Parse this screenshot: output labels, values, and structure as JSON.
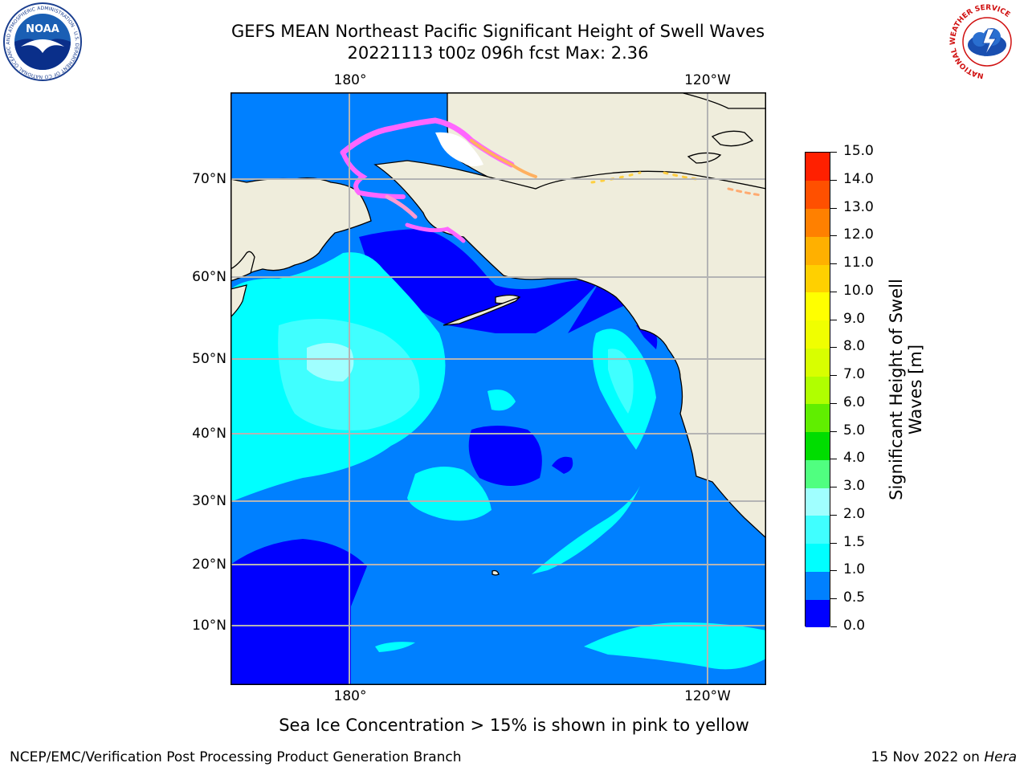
{
  "title": {
    "line1": "GEFS MEAN Northeast Pacific Significant Height of Swell Waves",
    "line2": "20221113 t00z 096h fcst   Max: 2.36"
  },
  "map": {
    "lon_labels_top": [
      "180°",
      "120°W"
    ],
    "lon_labels_bottom": [
      "180°",
      "120°W"
    ],
    "lat_labels": [
      "70°N",
      "60°N",
      "50°N",
      "40°N",
      "30°N",
      "20°N",
      "10°N"
    ],
    "land_color": "#efeddc",
    "grid_color": "#b4b4b4"
  },
  "colorbar": {
    "title": "Significant Height of Swell Waves [m]",
    "ticks": [
      "15.0",
      "14.0",
      "13.0",
      "12.0",
      "11.0",
      "10.0",
      "9.0",
      "8.0",
      "7.0",
      "6.0",
      "5.0",
      "4.0",
      "3.0",
      "2.0",
      "1.5",
      "1.0",
      "0.5",
      "0.0"
    ],
    "bounds": [
      0.0,
      0.5,
      1.0,
      1.5,
      2.0,
      3.0,
      4.0,
      5.0,
      6.0,
      7.0,
      8.0,
      9.0,
      10.0,
      11.0,
      12.0,
      13.0,
      14.0,
      15.0
    ],
    "colors": [
      "#0000ff",
      "#0080ff",
      "#00ffff",
      "#40ffff",
      "#a0ffff",
      "#50ff80",
      "#00dd00",
      "#60ee00",
      "#b0ff00",
      "#d8ff00",
      "#f0ff00",
      "#ffff00",
      "#ffd000",
      "#ffb000",
      "#ff8000",
      "#ff5000",
      "#ff2000"
    ]
  },
  "caption": "Sea Ice Concentration > 15% is shown in pink to yellow",
  "footer": {
    "left": "NCEP/EMC/Verification Post Processing Product Generation Branch",
    "right_date": "15 Nov 2022 on ",
    "right_system": "Hera"
  },
  "logos": {
    "noaa_label": "NOAA",
    "noaa_ring_text": "NATIONAL OCEANIC AND ATMOSPHERIC ADMINISTRATION · U.S. DEPARTMENT OF COMMERCE",
    "nws_ring_text": "NATIONAL WEATHER SERVICE"
  }
}
